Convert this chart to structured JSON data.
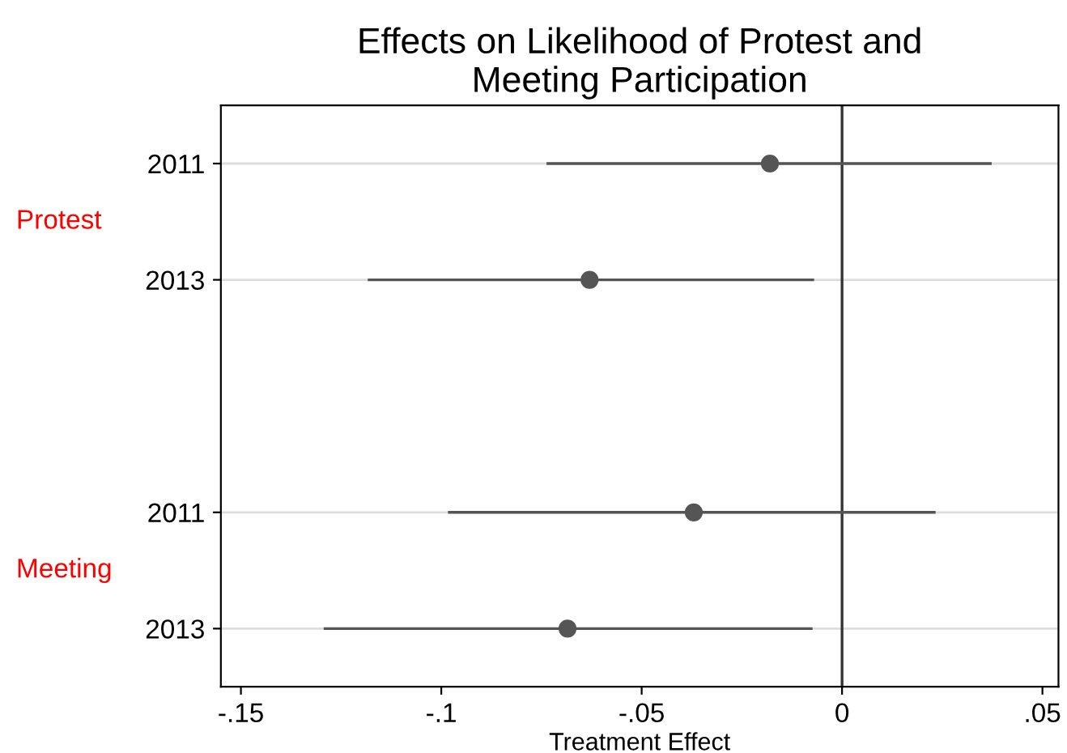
{
  "chart_data": {
    "type": "scatter",
    "orientation": "horizontal",
    "title": "Effects on Likelihood of Protest and\nMeeting Participation",
    "xlabel": "Treatment Effect",
    "categories": [
      "2011",
      "2013",
      null,
      "2011",
      "2013"
    ],
    "series": [
      {
        "color": "#555555",
        "values": [
          -0.018,
          -0.063,
          null,
          -0.037,
          -0.0685
        ],
        "errors": [
          [
            -0.0734,
            0.037
          ],
          [
            -0.118,
            -0.0073
          ],
          null,
          [
            -0.098,
            0.023
          ],
          [
            -0.129,
            -0.0077
          ]
        ]
      }
    ],
    "xlim": [
      -0.155,
      0.054
    ],
    "xticks": [
      {
        "value": -0.15,
        "label": "-.15"
      },
      {
        "value": -0.1,
        "label": "-.1"
      },
      {
        "value": -0.05,
        "label": "-.05"
      },
      0,
      {
        "value": 0.05,
        "label": ".05"
      }
    ],
    "ref_lines": [
      {
        "axis": "x",
        "value": 0,
        "color": "#333333"
      }
    ],
    "annotations": [
      "Protest",
      "Meeting"
    ],
    "grid": "y",
    "marker": "circle",
    "legend": false
  }
}
